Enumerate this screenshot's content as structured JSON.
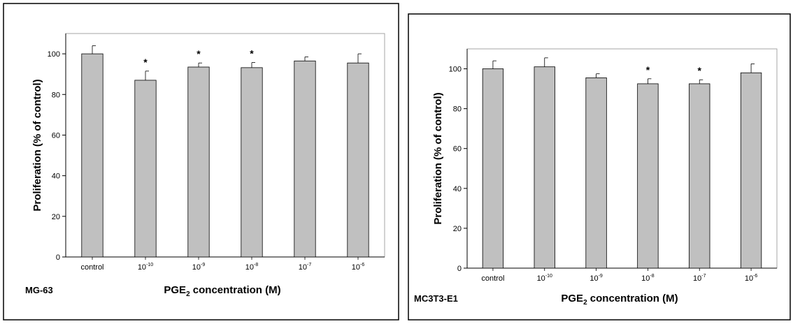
{
  "chart_data": [
    {
      "type": "bar",
      "panel_label": "MG-63",
      "ylabel": "Proliferation (% of control)",
      "xlabel": {
        "prefix": "PGE",
        "subscript": "2",
        "suffix": " concentration (M)"
      },
      "ylim": [
        0,
        110
      ],
      "yticks": [
        0,
        20,
        40,
        60,
        80,
        100
      ],
      "categories": [
        {
          "base": "control",
          "exp": ""
        },
        {
          "base": "10",
          "exp": "-10"
        },
        {
          "base": "10",
          "exp": "-9"
        },
        {
          "base": "10",
          "exp": "-8"
        },
        {
          "base": "10",
          "exp": "-7"
        },
        {
          "base": "10",
          "exp": "-6"
        }
      ],
      "values": [
        100,
        87,
        93.5,
        93.2,
        96.5,
        95.5
      ],
      "errors": [
        4,
        4.5,
        2,
        2.5,
        2,
        4.5
      ],
      "significance": [
        "",
        "*",
        "*",
        "*",
        "",
        ""
      ],
      "bar_color": "#c0c0c0",
      "grid": false
    },
    {
      "type": "bar",
      "panel_label": "MC3T3-E1",
      "ylabel": "Proliferation (% of control)",
      "xlabel": {
        "prefix": "PGE",
        "subscript": "2",
        "suffix": " concentration (M)"
      },
      "ylim": [
        0,
        110
      ],
      "yticks": [
        0,
        20,
        40,
        60,
        80,
        100
      ],
      "categories": [
        {
          "base": "control",
          "exp": ""
        },
        {
          "base": "10",
          "exp": "-10"
        },
        {
          "base": "10",
          "exp": "-9"
        },
        {
          "base": "10",
          "exp": "-8"
        },
        {
          "base": "10",
          "exp": "-7"
        },
        {
          "base": "10",
          "exp": "-6"
        }
      ],
      "values": [
        100,
        101,
        95.5,
        92.5,
        92.5,
        98
      ],
      "errors": [
        4,
        4.5,
        2,
        2.5,
        2,
        4.5
      ],
      "significance": [
        "",
        "",
        "",
        "*",
        "*",
        ""
      ],
      "bar_color": "#c0c0c0",
      "grid": false
    }
  ]
}
